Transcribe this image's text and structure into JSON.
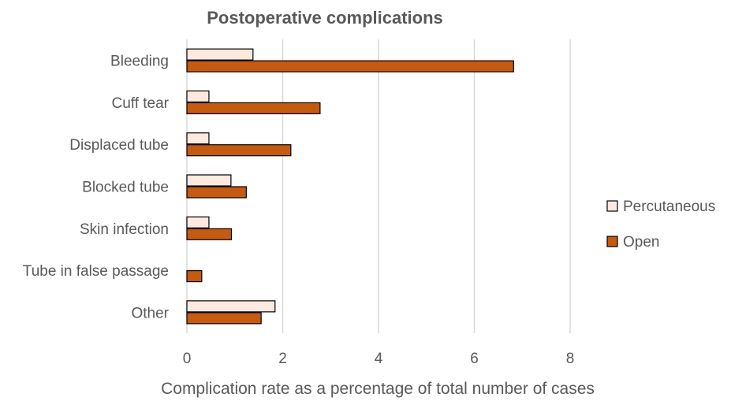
{
  "chart_data": {
    "type": "bar",
    "orientation": "horizontal",
    "title": "Postoperative complications",
    "xlabel": "Complication rate as a percentage of total number of cases",
    "ylabel": "",
    "xlim": [
      0,
      8
    ],
    "xticks": [
      0,
      2,
      4,
      6,
      8
    ],
    "grid": "vertical",
    "legend_position": "right",
    "categories": [
      "Bleeding",
      "Cuff tear",
      "Displaced tube",
      "Blocked tube",
      "Skin infection",
      "Tube in false passage",
      "Other"
    ],
    "series": [
      {
        "name": "Percutaneous",
        "color": "#fde9dd",
        "values": [
          1.38,
          0.46,
          0.46,
          0.92,
          0.46,
          0,
          1.84
        ]
      },
      {
        "name": "Open",
        "color": "#c55a11",
        "values": [
          6.82,
          2.78,
          2.17,
          1.24,
          0.93,
          0.31,
          1.55
        ]
      }
    ]
  }
}
